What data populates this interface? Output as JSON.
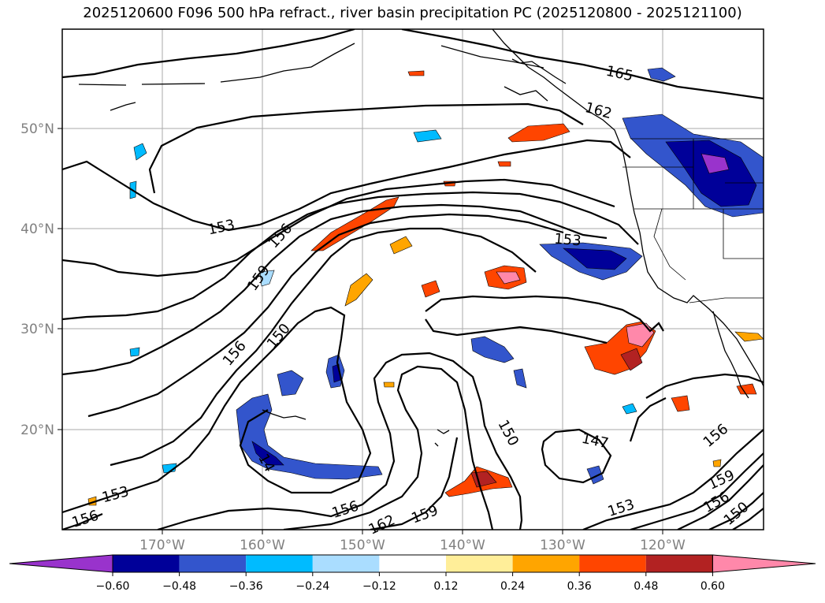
{
  "title": "2025120600 F096 500 hPa refract., river basin precipitation PC (2025120800 - 2025121100)",
  "lon_ticks": [
    "170°W",
    "160°W",
    "150°W",
    "140°W",
    "130°W",
    "120°W"
  ],
  "lat_ticks": [
    "50°N",
    "40°N",
    "30°N",
    "20°N"
  ],
  "colorbar": {
    "ticks": [
      "−0.60",
      "−0.48",
      "−0.36",
      "−0.24",
      "−0.12",
      "0.12",
      "0.24",
      "0.36",
      "0.48",
      "0.60"
    ],
    "colors": [
      "#9933cc",
      "#000099",
      "#3355cc",
      "#00bbff",
      "#aaddff",
      "#ffffff",
      "#ffee99",
      "#ffa500",
      "#ff4500",
      "#b22222",
      "#ff88aa"
    ]
  },
  "contour_labels": [
    "165",
    "162",
    "153",
    "156",
    "159",
    "156",
    "150",
    "153",
    "147",
    "150",
    "156",
    "159",
    "156",
    "150",
    "153",
    "162",
    "159",
    "156",
    "153",
    "156",
    "14"
  ]
}
